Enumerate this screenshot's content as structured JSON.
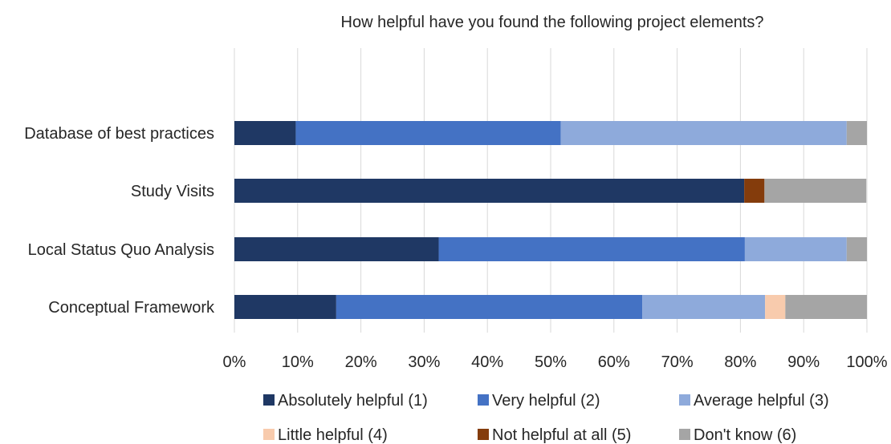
{
  "chart_data": {
    "type": "bar",
    "orientation": "horizontal",
    "stacked": "percent",
    "title": "How helpful have you found the following project elements?",
    "xlabel": "",
    "ylabel": "",
    "xlim": [
      0,
      100
    ],
    "x_ticks": [
      "0%",
      "10%",
      "20%",
      "30%",
      "40%",
      "50%",
      "60%",
      "70%",
      "80%",
      "90%",
      "100%"
    ],
    "grid": "vertical",
    "legend_position": "bottom",
    "categories": [
      "Database of best practices",
      "Study Visits",
      "Local Status Quo Analysis",
      "Conceptual Framework"
    ],
    "series": [
      {
        "name": "Absolutely helpful (1)",
        "color": "#1f3864",
        "values": [
          9.7,
          80.6,
          32.3,
          16.1
        ]
      },
      {
        "name": "Very helpful (2)",
        "color": "#4472c4",
        "values": [
          41.9,
          0,
          48.4,
          48.4
        ]
      },
      {
        "name": "Average helpful (3)",
        "color": "#8eaadb",
        "values": [
          45.2,
          0,
          16.1,
          19.4
        ]
      },
      {
        "name": "Little helpful (4)",
        "color": "#f8cbad",
        "values": [
          0,
          0,
          0,
          3.2
        ]
      },
      {
        "name": "Not helpful at all (5)",
        "color": "#843c0c",
        "values": [
          0,
          3.2,
          0,
          0
        ]
      },
      {
        "name": "Don't know (6)",
        "color": "#a5a5a5",
        "values": [
          3.2,
          16.1,
          3.2,
          12.9
        ]
      }
    ]
  }
}
